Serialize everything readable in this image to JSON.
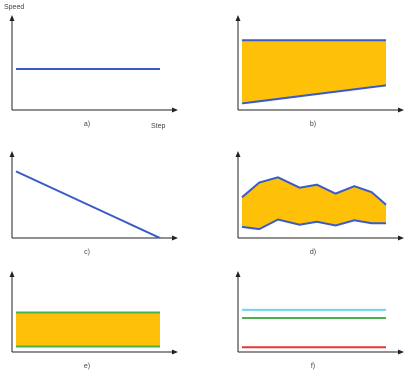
{
  "figure": {
    "y_unit_label": "Speed",
    "x_unit_label": "Step"
  },
  "chart_data": [
    {
      "type": "line",
      "xlabel": "a)",
      "series": [
        {
          "values": [
            0.5,
            0.5
          ]
        }
      ],
      "x": [
        0,
        1
      ],
      "ylim": [
        0,
        1
      ],
      "line_color": "#3a5bc7",
      "fill_color": "#ffc107"
    },
    {
      "type": "area",
      "xlabel": "b)",
      "x": [
        0,
        1
      ],
      "upper": [
        0.85,
        0.85
      ],
      "lower": [
        0.08,
        0.3
      ],
      "ylim": [
        0,
        1
      ],
      "line_color": "#3a5bc7",
      "fill_color": "#ffc107"
    },
    {
      "type": "line",
      "xlabel": "c)",
      "series": [
        {
          "values": [
            0.9,
            0.0
          ]
        }
      ],
      "x": [
        0,
        1
      ],
      "ylim": [
        0,
        1
      ],
      "line_color": "#3a5bc7",
      "fill_color": "#ffc107"
    },
    {
      "type": "area",
      "xlabel": "d)",
      "x": [
        0,
        0.12,
        0.25,
        0.4,
        0.52,
        0.65,
        0.78,
        0.9,
        1.0
      ],
      "upper": [
        0.55,
        0.75,
        0.82,
        0.68,
        0.72,
        0.6,
        0.7,
        0.62,
        0.45
      ],
      "lower": [
        0.15,
        0.12,
        0.25,
        0.18,
        0.22,
        0.17,
        0.24,
        0.2,
        0.2
      ],
      "ylim": [
        0,
        1
      ],
      "line_color": "#3a5bc7",
      "fill_color": "#ffc107"
    },
    {
      "type": "area",
      "xlabel": "e)",
      "x": [
        0,
        1
      ],
      "upper": [
        0.58,
        0.58
      ],
      "lower": [
        0.08,
        0.08
      ],
      "ylim": [
        0,
        1
      ],
      "line_color": "#3a5bc7",
      "fill_color": "#ffc107",
      "edge_color": "#4caf50"
    },
    {
      "type": "line",
      "xlabel": "f)",
      "x": [
        0,
        1
      ],
      "series": [
        {
          "values": [
            0.62,
            0.62
          ],
          "color": "#66d9e8"
        },
        {
          "values": [
            0.5,
            0.5
          ],
          "color": "#4caf50"
        },
        {
          "values": [
            0.07,
            0.07
          ],
          "color": "#e53935"
        }
      ],
      "ylim": [
        0,
        1
      ]
    }
  ]
}
